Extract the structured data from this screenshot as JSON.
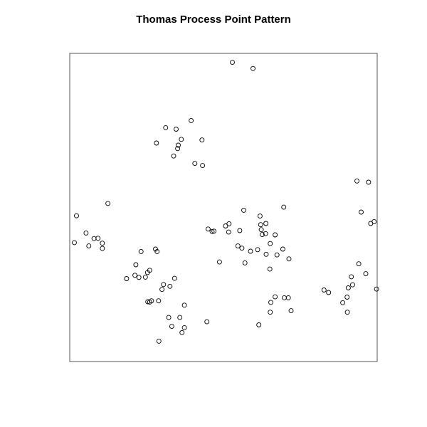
{
  "chart_data": {
    "type": "scatter",
    "title": "Thomas Process Point Pattern",
    "xlabel": "",
    "ylabel": "",
    "xlim": [
      0,
      1
    ],
    "ylim": [
      0,
      1
    ],
    "axes_shown": false,
    "grid": false,
    "marker": "open-circle",
    "colors": {
      "point_stroke": "#000000",
      "frame": "#555555",
      "background": "#ffffff"
    },
    "points": [
      [
        0.529,
        0.971
      ],
      [
        0.596,
        0.951
      ],
      [
        0.312,
        0.759
      ],
      [
        0.346,
        0.754
      ],
      [
        0.395,
        0.782
      ],
      [
        0.282,
        0.709
      ],
      [
        0.363,
        0.721
      ],
      [
        0.353,
        0.702
      ],
      [
        0.351,
        0.691
      ],
      [
        0.338,
        0.667
      ],
      [
        0.43,
        0.719
      ],
      [
        0.407,
        0.643
      ],
      [
        0.432,
        0.636
      ],
      [
        0.124,
        0.513
      ],
      [
        0.022,
        0.473
      ],
      [
        0.053,
        0.417
      ],
      [
        0.079,
        0.399
      ],
      [
        0.092,
        0.4
      ],
      [
        0.106,
        0.384
      ],
      [
        0.015,
        0.386
      ],
      [
        0.062,
        0.375
      ],
      [
        0.106,
        0.367
      ],
      [
        0.279,
        0.365
      ],
      [
        0.284,
        0.357
      ],
      [
        0.232,
        0.357
      ],
      [
        0.215,
        0.314
      ],
      [
        0.26,
        0.296
      ],
      [
        0.212,
        0.28
      ],
      [
        0.246,
        0.274
      ],
      [
        0.253,
        0.289
      ],
      [
        0.225,
        0.273
      ],
      [
        0.185,
        0.269
      ],
      [
        0.341,
        0.27
      ],
      [
        0.305,
        0.25
      ],
      [
        0.326,
        0.244
      ],
      [
        0.3,
        0.234
      ],
      [
        0.254,
        0.194
      ],
      [
        0.266,
        0.197
      ],
      [
        0.26,
        0.193
      ],
      [
        0.289,
        0.197
      ],
      [
        0.373,
        0.183
      ],
      [
        0.322,
        0.143
      ],
      [
        0.358,
        0.143
      ],
      [
        0.332,
        0.114
      ],
      [
        0.373,
        0.11
      ],
      [
        0.365,
        0.094
      ],
      [
        0.29,
        0.066
      ],
      [
        0.446,
        0.129
      ],
      [
        0.45,
        0.43
      ],
      [
        0.463,
        0.422
      ],
      [
        0.469,
        0.423
      ],
      [
        0.507,
        0.44
      ],
      [
        0.518,
        0.447
      ],
      [
        0.517,
        0.42
      ],
      [
        0.553,
        0.425
      ],
      [
        0.566,
        0.491
      ],
      [
        0.619,
        0.472
      ],
      [
        0.621,
        0.444
      ],
      [
        0.638,
        0.448
      ],
      [
        0.626,
        0.412
      ],
      [
        0.623,
        0.428
      ],
      [
        0.637,
        0.415
      ],
      [
        0.668,
        0.411
      ],
      [
        0.696,
        0.501
      ],
      [
        0.652,
        0.383
      ],
      [
        0.611,
        0.363
      ],
      [
        0.547,
        0.375
      ],
      [
        0.56,
        0.368
      ],
      [
        0.588,
        0.358
      ],
      [
        0.639,
        0.348
      ],
      [
        0.674,
        0.346
      ],
      [
        0.693,
        0.365
      ],
      [
        0.713,
        0.333
      ],
      [
        0.651,
        0.3
      ],
      [
        0.57,
        0.32
      ],
      [
        0.487,
        0.323
      ],
      [
        0.668,
        0.21
      ],
      [
        0.698,
        0.207
      ],
      [
        0.711,
        0.207
      ],
      [
        0.654,
        0.192
      ],
      [
        0.652,
        0.16
      ],
      [
        0.72,
        0.165
      ],
      [
        0.615,
        0.119
      ],
      [
        0.934,
        0.586
      ],
      [
        0.972,
        0.582
      ],
      [
        0.948,
        0.485
      ],
      [
        0.99,
        0.454
      ],
      [
        0.979,
        0.448
      ],
      [
        0.94,
        0.317
      ],
      [
        0.963,
        0.285
      ],
      [
        0.916,
        0.275
      ],
      [
        0.92,
        0.249
      ],
      [
        0.906,
        0.239
      ],
      [
        0.998,
        0.235
      ],
      [
        0.842,
        0.224
      ],
      [
        0.827,
        0.232
      ],
      [
        0.902,
        0.209
      ],
      [
        0.888,
        0.191
      ],
      [
        0.903,
        0.16
      ]
    ]
  }
}
